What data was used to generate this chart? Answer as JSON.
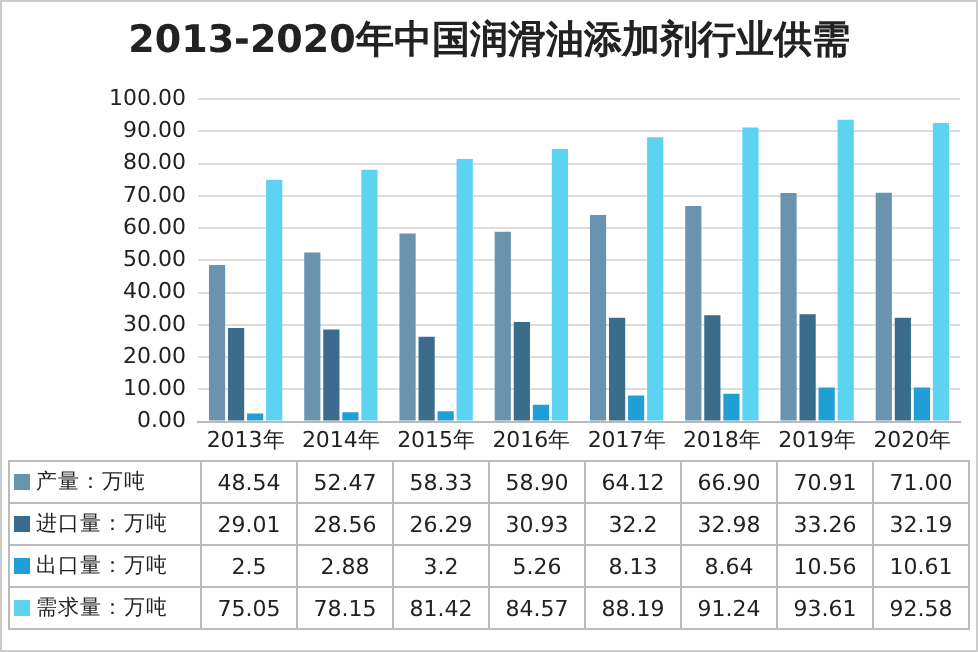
{
  "chart_data": {
    "type": "bar",
    "title": "2013-2020年中国润滑油添加剂行业供需",
    "categories": [
      "2013年",
      "2014年",
      "2015年",
      "2016年",
      "2017年",
      "2018年",
      "2019年",
      "2020年"
    ],
    "series": [
      {
        "name": "产量：万吨",
        "color": "#6a93b0",
        "values": [
          48.54,
          52.47,
          58.33,
          58.9,
          64.12,
          66.9,
          70.91,
          71
        ],
        "value_labels": [
          "48.54",
          "52.47",
          "58.33",
          "58.90",
          "64.12",
          "66.90",
          "70.91",
          "71.00"
        ]
      },
      {
        "name": "进口量：万吨",
        "color": "#3b6c8c",
        "values": [
          29.01,
          28.56,
          26.29,
          30.93,
          32.2,
          32.98,
          33.26,
          32.19
        ],
        "value_labels": [
          "29.01",
          "28.56",
          "26.29",
          "30.93",
          "32.2",
          "32.98",
          "33.26",
          "32.19"
        ]
      },
      {
        "name": "出口量：万吨",
        "color": "#1f9fd6",
        "values": [
          2.5,
          2.88,
          3.2,
          5.26,
          8.13,
          8.64,
          10.56,
          10.61
        ],
        "value_labels": [
          "2.5",
          "2.88",
          "3.2",
          "5.26",
          "8.13",
          "8.64",
          "10.56",
          "10.61"
        ]
      },
      {
        "name": "需求量：万吨",
        "color": "#5dd3f2",
        "values": [
          75.05,
          78.15,
          81.42,
          84.57,
          88.19,
          91.24,
          93.61,
          92.58
        ],
        "value_labels": [
          "75.05",
          "78.15",
          "81.42",
          "84.57",
          "88.19",
          "91.24",
          "93.61",
          "92.58"
        ]
      }
    ],
    "ylim": [
      0,
      100
    ],
    "yticks": [
      {
        "value": 0,
        "label": "0.00"
      },
      {
        "value": 10,
        "label": "10.00"
      },
      {
        "value": 20,
        "label": "20.00"
      },
      {
        "value": 30,
        "label": "30.00"
      },
      {
        "value": 40,
        "label": "40.00"
      },
      {
        "value": 50,
        "label": "50.00"
      },
      {
        "value": 60,
        "label": "60.00"
      },
      {
        "value": 70,
        "label": "70.00"
      },
      {
        "value": 80,
        "label": "80.00"
      },
      {
        "value": 90,
        "label": "90.00"
      },
      {
        "value": 100,
        "label": "100.00"
      }
    ],
    "grid": "y",
    "legend": "bottom"
  }
}
